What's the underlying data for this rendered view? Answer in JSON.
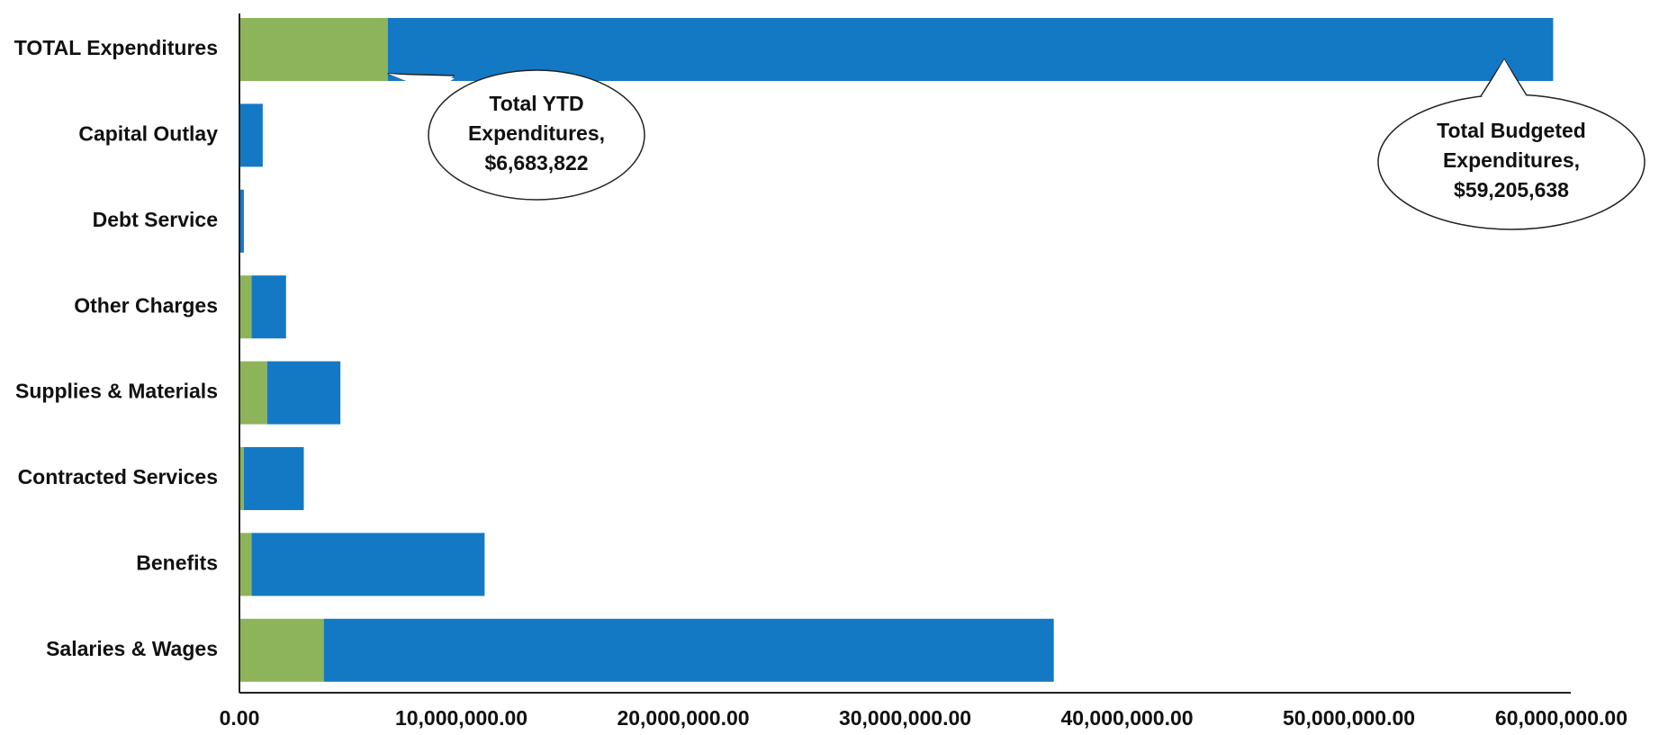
{
  "chart_data": {
    "type": "bar",
    "orientation": "horizontal",
    "stacked": true,
    "categories": [
      "TOTAL Expenditures",
      "Capital Outlay",
      "Debt Service",
      "Other Charges",
      "Supplies & Materials",
      "Contracted Services",
      "Benefits",
      "Salaries & Wages"
    ],
    "series": [
      {
        "color": "#8db45a",
        "values": [
          6683822,
          0,
          0,
          550000,
          1250000,
          200000,
          550000,
          3800000
        ]
      },
      {
        "color": "#1479c4",
        "values": [
          52521816,
          1050000,
          200000,
          1550000,
          3300000,
          2700000,
          10500000,
          32900000
        ]
      }
    ],
    "x_tick_labels": [
      "0.00",
      "10,000,000.00",
      "20,000,000.00",
      "30,000,000.00",
      "40,000,000.00",
      "50,000,000.00",
      "60,000,000.00"
    ],
    "x_ticks": [
      0,
      10000000,
      20000000,
      30000000,
      40000000,
      50000000,
      60000000
    ],
    "xlim": [
      0,
      60000000
    ],
    "grid": false,
    "legend": "none",
    "title": "",
    "xlabel": "",
    "ylabel": "",
    "annotations": [
      {
        "lines": [
          "Total YTD",
          "Expenditures,",
          "$6,683,822"
        ],
        "points_to_category": "TOTAL Expenditures",
        "points_to_value": 6683822
      },
      {
        "lines": [
          "Total Budgeted",
          "Expenditures,",
          "$59,205,638"
        ],
        "points_to_category": "TOTAL Expenditures",
        "points_to_value": 57000000
      }
    ]
  }
}
